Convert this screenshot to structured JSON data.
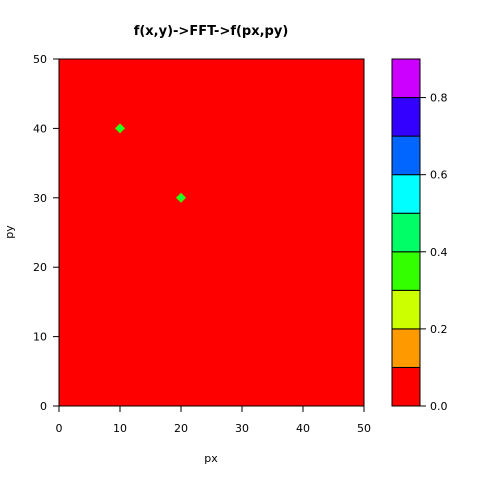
{
  "chart_data": {
    "type": "heatmap",
    "title": "f(x,y)->FFT->f(px,py)",
    "xlabel": "px",
    "ylabel": "py",
    "xlim": [
      0,
      50
    ],
    "ylim": [
      0,
      50
    ],
    "xticks": [
      0,
      10,
      20,
      30,
      40,
      50
    ],
    "yticks": [
      0,
      10,
      20,
      30,
      40,
      50
    ],
    "background_level": 0.0,
    "peaks": [
      {
        "x": 10,
        "y": 40,
        "value": 0.3
      },
      {
        "x": 20,
        "y": 30,
        "value": 0.3
      }
    ],
    "colorbar": {
      "range": [
        0,
        0.9
      ],
      "breaks": [
        0,
        0.1,
        0.2,
        0.3,
        0.4,
        0.5,
        0.6,
        0.7,
        0.8,
        0.9
      ],
      "colors": [
        "#FF0000",
        "#FF9900",
        "#CCFF00",
        "#33FF00",
        "#00FF66",
        "#00FFFF",
        "#0066FF",
        "#3300FF",
        "#CC00FF"
      ],
      "ticks": [
        "0.0",
        "0.2",
        "0.4",
        "0.6",
        "0.8"
      ],
      "tick_values": [
        0,
        0.2,
        0.4,
        0.6,
        0.8
      ]
    }
  }
}
